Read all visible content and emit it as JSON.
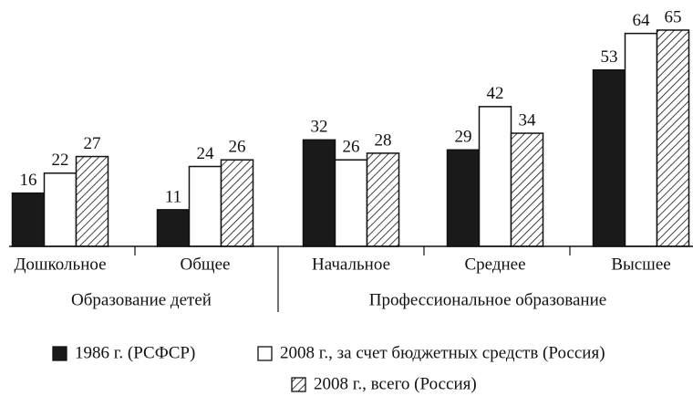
{
  "chart_data": {
    "type": "bar",
    "groups": [
      {
        "name": "Образование детей",
        "categories": [
          "Дошкольное",
          "Общее"
        ]
      },
      {
        "name": "Профессиональное образование",
        "categories": [
          "Начальное",
          "Среднее",
          "Высшее"
        ]
      }
    ],
    "series": [
      {
        "name": "1986 г. (РСФСР)",
        "color": "#1a1a1a",
        "values": [
          16,
          11,
          32,
          29,
          53
        ]
      },
      {
        "name": "2008 г., за счет бюджетных средств (Россия)",
        "color": "#ffffff",
        "values": [
          22,
          24,
          26,
          42,
          64
        ]
      },
      {
        "name": "2008 г., всего (Россия)",
        "color": "#ffffff",
        "pattern": "hatch",
        "values": [
          27,
          26,
          28,
          34,
          65
        ]
      }
    ],
    "legend": "bottom"
  }
}
